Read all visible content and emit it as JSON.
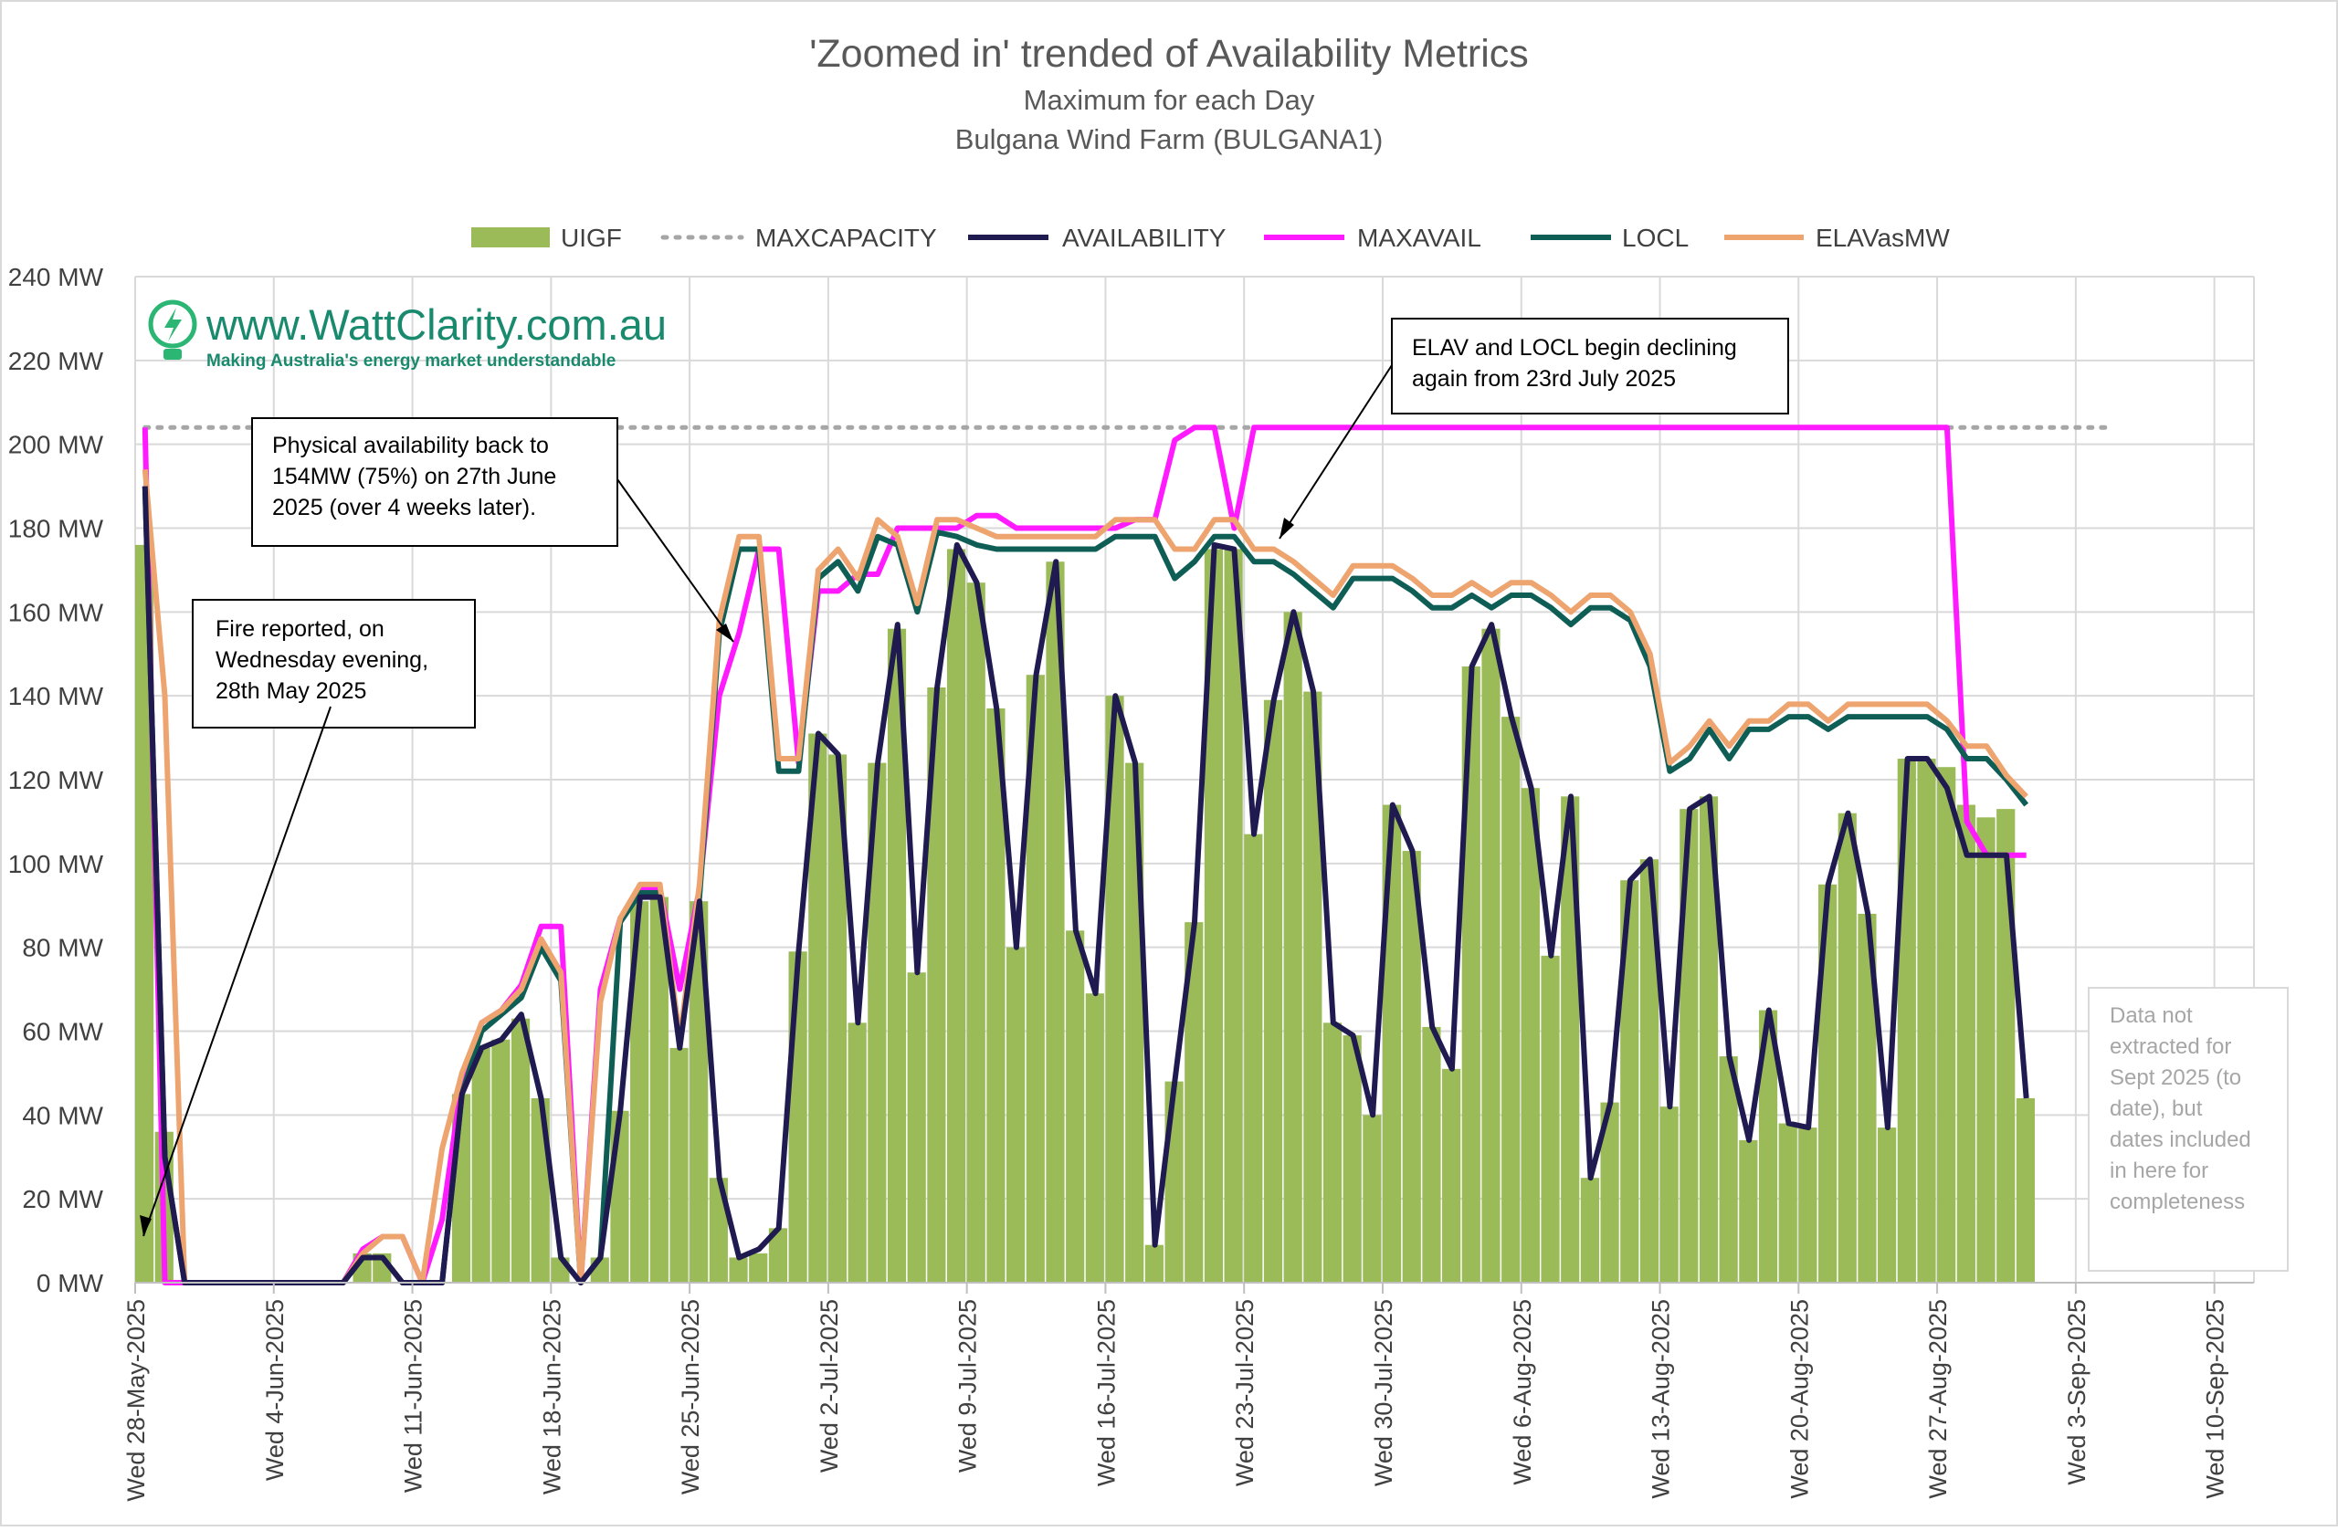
{
  "chart": {
    "title": "'Zoomed in' trended of Availability Metrics",
    "subtitle1": "Maximum for each Day",
    "subtitle2": "Bulgana Wind Farm (BULGANA1)"
  },
  "brand": {
    "name": "www.WattClarity.com.au",
    "tagline": "Making Australia's energy market understandable",
    "icon": "bolt-bulb-icon"
  },
  "annotations": {
    "fire": [
      "Fire reported, on",
      "Wednesday evening,",
      "28th May 2025"
    ],
    "physical": [
      "Physical availability back to",
      "154MW (75%) on 27th June",
      "2025 (over 4 weeks later)."
    ],
    "elav": [
      "ELAV and LOCL begin declining",
      "again from 23rd July 2025"
    ],
    "note": [
      "Data not",
      "extracted for",
      "Sept 2025 (to",
      "date), but",
      "dates included",
      "in here for",
      "completeness"
    ]
  },
  "colors": {
    "uigf": "#9bbb59",
    "maxcapacity": "#a6a6a6",
    "availability": "#1f1a4f",
    "maxavail": "#ff1aff",
    "locl": "#0f5e56",
    "elavasmw": "#eda46f",
    "grid": "#d9d9d9"
  },
  "chart_data": {
    "type": "bar+line",
    "x_start_label": "Wed 28-May-2025",
    "x_count_days": 99,
    "xlim_days": [
      0,
      107
    ],
    "ylim": [
      0,
      240
    ],
    "ylabel_unit": "MW",
    "yticks": [
      "0 MW",
      "20 MW",
      "40 MW",
      "60 MW",
      "80 MW",
      "100 MW",
      "120 MW",
      "140 MW",
      "160 MW",
      "180 MW",
      "200 MW",
      "220 MW",
      "240 MW"
    ],
    "xticks": [
      "Wed 28-May-2025",
      "Wed 4-Jun-2025",
      "Wed 11-Jun-2025",
      "Wed 18-Jun-2025",
      "Wed 25-Jun-2025",
      "Wed 2-Jul-2025",
      "Wed 9-Jul-2025",
      "Wed 16-Jul-2025",
      "Wed 23-Jul-2025",
      "Wed 30-Jul-2025",
      "Wed 6-Aug-2025",
      "Wed 13-Aug-2025",
      "Wed 20-Aug-2025",
      "Wed 27-Aug-2025",
      "Wed 3-Sep-2025",
      "Wed 10-Sep-2025"
    ],
    "grid": true,
    "legend_position": "top",
    "series": [
      {
        "name": "UIGF",
        "kind": "bar",
        "values": [
          176,
          36,
          0,
          0,
          0,
          0,
          0,
          0,
          0,
          0,
          0,
          7,
          7,
          0,
          0,
          0,
          45,
          56,
          58,
          63,
          44,
          6,
          0,
          6,
          41,
          91,
          92,
          56,
          91,
          25,
          6,
          7,
          13,
          79,
          131,
          126,
          62,
          124,
          156,
          74,
          142,
          175,
          167,
          137,
          80,
          145,
          172,
          84,
          69,
          140,
          124,
          9,
          48,
          86,
          175,
          175,
          107,
          139,
          160,
          141,
          62,
          59,
          40,
          114,
          103,
          61,
          51,
          147,
          156,
          135,
          118,
          78,
          116,
          25,
          43,
          96,
          101,
          42,
          113,
          116,
          54,
          34,
          65,
          38,
          37,
          95,
          112,
          88,
          37,
          125,
          125,
          123,
          114,
          111,
          113,
          44
        ]
      },
      {
        "name": "MAXCAPACITY",
        "kind": "dotted-line",
        "values": [
          204,
          204,
          204,
          204,
          204,
          204,
          204,
          204,
          204,
          204,
          204,
          204,
          204,
          204,
          204,
          204,
          204,
          204,
          204,
          204,
          204,
          204,
          204,
          204,
          204,
          204,
          204,
          204,
          204,
          204,
          204,
          204,
          204,
          204,
          204,
          204,
          204,
          204,
          204,
          204,
          204,
          204,
          204,
          204,
          204,
          204,
          204,
          204,
          204,
          204,
          204,
          204,
          204,
          204,
          204,
          204,
          204,
          204,
          204,
          204,
          204,
          204,
          204,
          204,
          204,
          204,
          204,
          204,
          204,
          204,
          204,
          204,
          204,
          204,
          204,
          204,
          204,
          204,
          204,
          204,
          204,
          204,
          204,
          204,
          204,
          204,
          204,
          204,
          204,
          204,
          204,
          204,
          204,
          204,
          204,
          204,
          204,
          204,
          204,
          204
        ]
      },
      {
        "name": "AVAILABILITY",
        "kind": "line",
        "values": [
          190,
          30,
          0,
          0,
          0,
          0,
          0,
          0,
          0,
          0,
          0,
          6,
          6,
          0,
          0,
          0,
          45,
          56,
          58,
          64,
          44,
          6,
          0,
          6,
          41,
          92,
          92,
          56,
          91,
          25,
          6,
          8,
          13,
          79,
          131,
          126,
          62,
          124,
          157,
          74,
          142,
          176,
          167,
          137,
          80,
          145,
          172,
          84,
          69,
          140,
          124,
          9,
          48,
          86,
          176,
          175,
          107,
          139,
          160,
          141,
          62,
          59,
          40,
          114,
          103,
          61,
          51,
          147,
          157,
          135,
          118,
          78,
          116,
          25,
          43,
          96,
          101,
          42,
          113,
          116,
          54,
          34,
          65,
          38,
          37,
          95,
          112,
          88,
          37,
          125,
          125,
          118,
          102,
          102,
          102,
          44
        ]
      },
      {
        "name": "MAXAVAIL",
        "kind": "line",
        "values": [
          204,
          0,
          0,
          0,
          0,
          0,
          0,
          0,
          0,
          0,
          0,
          8,
          11,
          11,
          0,
          15,
          48,
          62,
          65,
          71,
          85,
          85,
          0,
          70,
          87,
          94,
          94,
          70,
          94,
          140,
          155,
          175,
          175,
          124,
          165,
          165,
          169,
          169,
          180,
          180,
          180,
          180,
          183,
          183,
          180,
          180,
          180,
          180,
          180,
          180,
          182,
          182,
          201,
          204,
          204,
          180,
          204,
          204,
          204,
          204,
          204,
          204,
          204,
          204,
          204,
          204,
          204,
          204,
          204,
          204,
          204,
          204,
          204,
          204,
          204,
          204,
          204,
          204,
          204,
          204,
          204,
          204,
          204,
          204,
          204,
          204,
          204,
          204,
          204,
          204,
          204,
          204,
          110,
          102,
          102,
          102
        ]
      },
      {
        "name": "LOCL",
        "kind": "line",
        "values": [
          190,
          30,
          0,
          0,
          0,
          0,
          0,
          0,
          0,
          0,
          0,
          6,
          6,
          0,
          0,
          0,
          45,
          60,
          64,
          68,
          80,
          72,
          0,
          6,
          86,
          93,
          93,
          58,
          92,
          155,
          175,
          175,
          122,
          122,
          168,
          172,
          165,
          178,
          176,
          160,
          179,
          178,
          176,
          175,
          175,
          175,
          175,
          175,
          175,
          178,
          178,
          178,
          168,
          172,
          178,
          178,
          172,
          172,
          169,
          165,
          161,
          168,
          168,
          168,
          165,
          161,
          161,
          164,
          161,
          164,
          164,
          161,
          157,
          161,
          161,
          158,
          147,
          122,
          125,
          132,
          125,
          132,
          132,
          135,
          135,
          132,
          135,
          135,
          135,
          135,
          135,
          132,
          125,
          125,
          120,
          114
        ]
      },
      {
        "name": "ELAVasMW",
        "kind": "line",
        "values": [
          194,
          140,
          0,
          0,
          0,
          0,
          0,
          0,
          0,
          0,
          0,
          7,
          11,
          11,
          0,
          32,
          50,
          62,
          65,
          70,
          82,
          74,
          0,
          67,
          87,
          95,
          95,
          58,
          95,
          158,
          178,
          178,
          125,
          125,
          170,
          175,
          168,
          182,
          178,
          162,
          182,
          182,
          180,
          178,
          178,
          178,
          178,
          178,
          178,
          182,
          182,
          182,
          175,
          175,
          182,
          182,
          175,
          175,
          172,
          168,
          164,
          171,
          171,
          171,
          168,
          164,
          164,
          167,
          164,
          167,
          167,
          164,
          160,
          164,
          164,
          160,
          150,
          124,
          128,
          134,
          128,
          134,
          134,
          138,
          138,
          134,
          138,
          138,
          138,
          138,
          138,
          134,
          128,
          128,
          121,
          116
        ]
      }
    ]
  }
}
